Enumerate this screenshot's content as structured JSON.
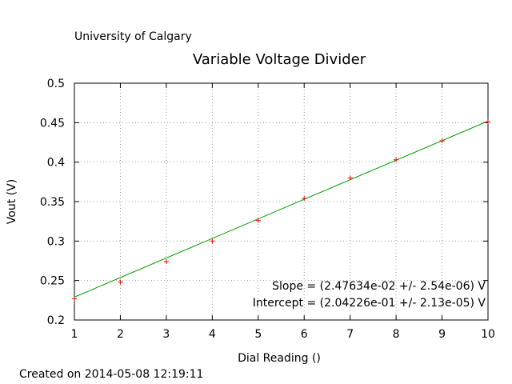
{
  "header": {
    "institution": "University of Calgary",
    "created": "Created on 2014-05-08 12:19:11"
  },
  "chart_data": {
    "type": "scatter",
    "title": "Variable Voltage Divider",
    "xlabel": "Dial Reading ()",
    "ylabel": "Vout (V)",
    "xlim": [
      1,
      10
    ],
    "ylim": [
      0.2,
      0.5
    ],
    "xticks": [
      "1",
      "2",
      "3",
      "4",
      "5",
      "6",
      "7",
      "8",
      "9",
      "10"
    ],
    "yticks": [
      "0.2",
      "0.25",
      "0.3",
      "0.35",
      "0.4",
      "0.45",
      "0.5"
    ],
    "grid": true,
    "series": [
      {
        "kind": "points",
        "marker": "plus",
        "color": "#ff0000",
        "x": [
          1,
          2,
          3,
          4,
          5,
          6,
          7,
          8,
          9,
          10
        ],
        "y": [
          0.227,
          0.248,
          0.274,
          0.3,
          0.326,
          0.354,
          0.38,
          0.403,
          0.427,
          0.451
        ]
      },
      {
        "kind": "fit-line",
        "color": "#00a000",
        "x": [
          1,
          10
        ],
        "y": [
          0.229,
          0.452
        ]
      }
    ],
    "annotations": [
      "Slope = (2.47634e-02 +/- 2.54e-06) V",
      "Intercept = (2.04226e-01 +/- 2.13e-05) V"
    ]
  }
}
